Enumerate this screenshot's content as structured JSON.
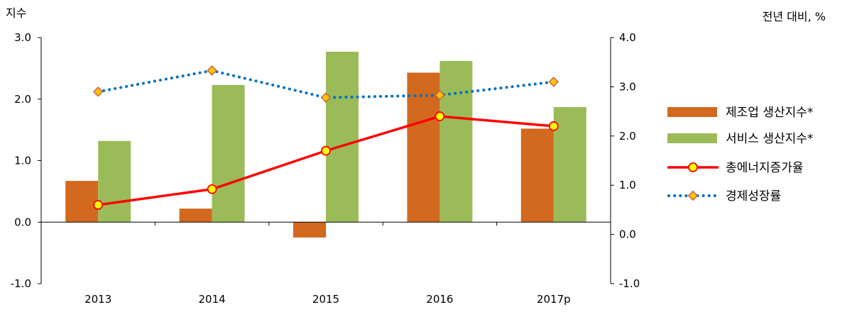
{
  "chart_data": {
    "type": "bar+line",
    "categories": [
      "2013",
      "2014",
      "2015",
      "2016",
      "2017p"
    ],
    "left_axis": {
      "title": "지수",
      "ylim": [
        -1.0,
        3.0
      ],
      "ticks": [
        "3.0",
        "2.0",
        "1.0",
        "0.0",
        "-1.0"
      ]
    },
    "right_axis": {
      "title": "전년 대비, %",
      "ylim": [
        -1.0,
        4.0
      ],
      "ticks": [
        "4.0",
        "3.0",
        "2.0",
        "1.0",
        "0.0",
        "-1.0"
      ]
    },
    "series": [
      {
        "name": "제조업 생산지수*",
        "kind": "bar",
        "axis": "left",
        "color": "#D2691E",
        "values": [
          0.67,
          0.22,
          -0.25,
          2.43,
          1.52
        ]
      },
      {
        "name": "서비스 생산지수*",
        "kind": "bar",
        "axis": "left",
        "color": "#9BBB59",
        "values": [
          1.32,
          2.23,
          2.77,
          2.62,
          1.87
        ]
      },
      {
        "name": "총에너지증가율",
        "kind": "line",
        "axis": "right",
        "color": "#FF0000",
        "marker_color": "#FFFF00",
        "values": [
          0.6,
          0.92,
          1.7,
          2.4,
          2.2
        ]
      },
      {
        "name": "경제성장률",
        "kind": "dotted-line",
        "axis": "right",
        "color": "#0070C0",
        "marker_color": "#FFC000",
        "values": [
          2.9,
          3.33,
          2.78,
          2.83,
          3.1
        ]
      }
    ],
    "grid": false,
    "legend_position": "right"
  }
}
